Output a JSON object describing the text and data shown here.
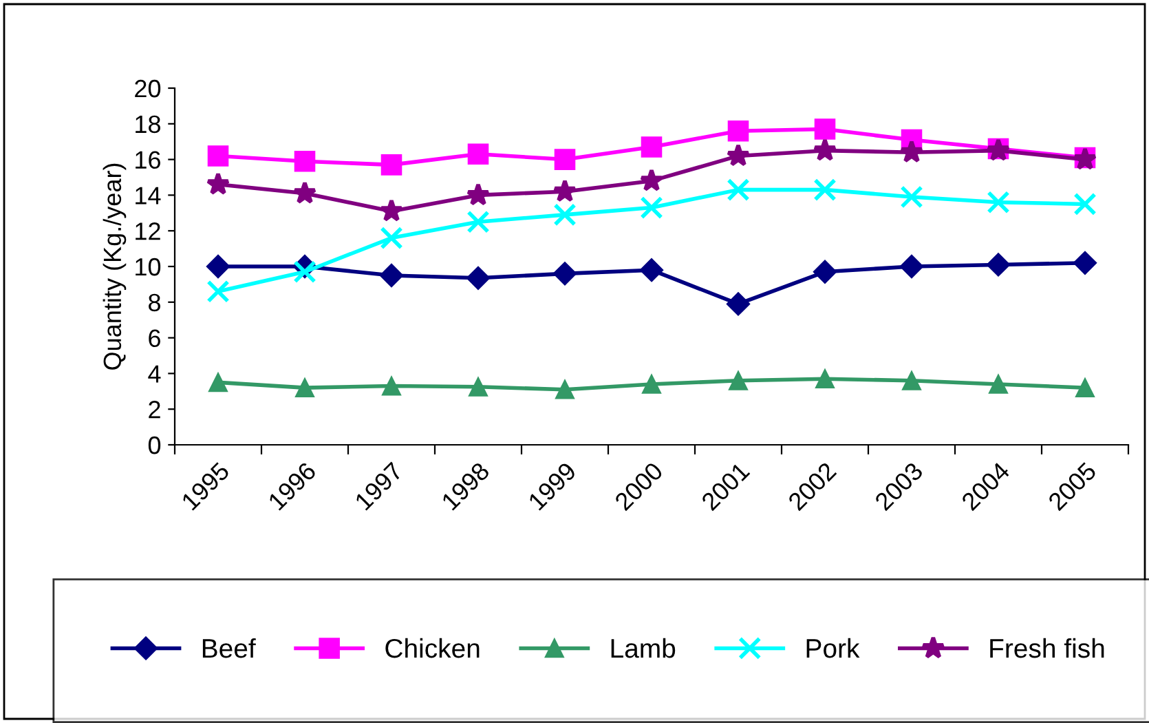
{
  "chart_data": {
    "type": "line",
    "ylabel": "Quantity (Kg./year)",
    "categories": [
      "1995",
      "1996",
      "1997",
      "1998",
      "1999",
      "2000",
      "2001",
      "2002",
      "2003",
      "2004",
      "2005"
    ],
    "series": [
      {
        "name": "Beef",
        "color": "#000080",
        "marker": "diamond",
        "values": [
          10,
          10,
          9.5,
          9.35,
          9.6,
          9.8,
          7.9,
          9.7,
          10,
          10.1,
          10.2
        ]
      },
      {
        "name": "Chicken",
        "color": "#ff00ff",
        "marker": "square",
        "values": [
          16.2,
          15.9,
          15.7,
          16.3,
          16.0,
          16.7,
          17.6,
          17.7,
          17.1,
          16.6,
          16.1
        ]
      },
      {
        "name": "Lamb",
        "color": "#339966",
        "marker": "triangle",
        "values": [
          3.5,
          3.2,
          3.3,
          3.25,
          3.1,
          3.4,
          3.6,
          3.7,
          3.6,
          3.4,
          3.2
        ]
      },
      {
        "name": "Pork",
        "color": "#00ffff",
        "marker": "cross",
        "values": [
          8.6,
          9.7,
          11.6,
          12.5,
          12.9,
          13.3,
          14.3,
          14.3,
          13.9,
          13.6,
          13.5
        ]
      },
      {
        "name": "Fresh fish",
        "color": "#800080",
        "marker": "star",
        "values": [
          14.6,
          14.1,
          13.1,
          14.0,
          14.2,
          14.8,
          16.2,
          16.5,
          16.4,
          16.5,
          16.0
        ]
      }
    ],
    "ylim": [
      0,
      20
    ],
    "yticks": [
      0,
      2,
      4,
      6,
      8,
      10,
      12,
      14,
      16,
      18,
      20
    ],
    "grid": false,
    "legend": "bottom",
    "line_style": "solid"
  }
}
